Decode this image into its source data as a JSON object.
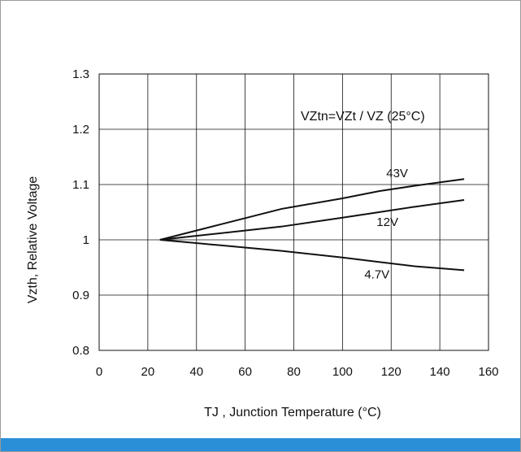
{
  "chart_data": {
    "type": "line",
    "xlabel": "TJ , Junction Temperature (°C)",
    "ylabel": "Vzth, Relative Voltage",
    "xlim": [
      0,
      160
    ],
    "ylim": [
      0.8,
      1.3
    ],
    "x_ticks": [
      "0",
      "20",
      "40",
      "60",
      "80",
      "100",
      "120",
      "140",
      "160"
    ],
    "y_ticks": [
      "1.3",
      "1.2",
      "1.1",
      "1",
      "0.9",
      "0.8"
    ],
    "annotation": "VZtn=VZt / VZ (25°C)",
    "grid": true,
    "series": [
      {
        "name": "43V",
        "x": [
          25,
          50,
          75,
          100,
          115,
          130,
          150
        ],
        "values": [
          1.0,
          1.028,
          1.056,
          1.075,
          1.088,
          1.098,
          1.11
        ]
      },
      {
        "name": "12V",
        "x": [
          25,
          50,
          75,
          100,
          115,
          130,
          150
        ],
        "values": [
          1.0,
          1.012,
          1.024,
          1.04,
          1.05,
          1.06,
          1.072
        ]
      },
      {
        "name": "4.7V",
        "x": [
          25,
          50,
          75,
          100,
          115,
          130,
          150
        ],
        "values": [
          1.0,
          0.99,
          0.98,
          0.968,
          0.96,
          0.952,
          0.945
        ]
      }
    ]
  }
}
